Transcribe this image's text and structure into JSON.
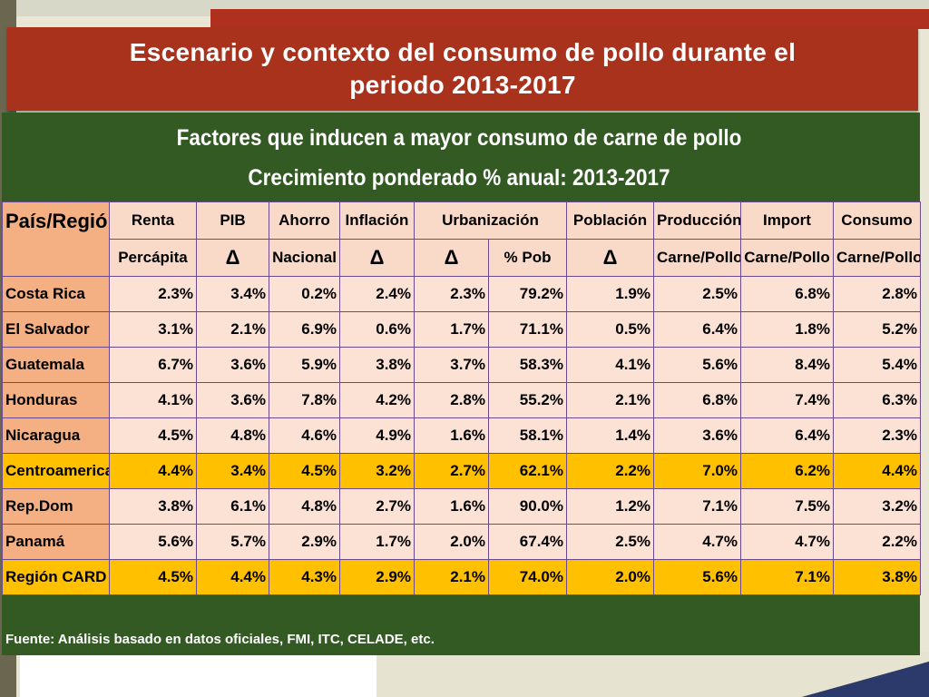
{
  "slide": {
    "title_line1": "Escenario y contexto del consumo de pollo durante el",
    "title_line2": "periodo 2013-2017",
    "subtitle1": "Factores que inducen a mayor consumo de carne de pollo",
    "subtitle2": "Crecimiento ponderado % anual:  2013-2017",
    "footer": "Fuente: Análisis basado en datos oficiales, FMI, ITC, CELADE, etc."
  },
  "table": {
    "h_country": "País/Región",
    "h_renta_1": "Renta",
    "h_renta_2": "Percápita",
    "h_pib_1": "PIB",
    "h_pib_2": "Δ",
    "h_ahorro_1": "Ahorro",
    "h_ahorro_2": "Nacional",
    "h_inflacion_1": "Inflación",
    "h_inflacion_2": "Δ",
    "h_urbanizacion": "Urbanización",
    "h_urb_delta": "Δ",
    "h_urb_pob": "% Pob",
    "h_poblacion_1": "Población",
    "h_poblacion_2": "Δ",
    "h_produccion_1": "Producción",
    "h_produccion_2": "Carne/Pollo",
    "h_import_1": "Import",
    "h_import_2": "Carne/Pollo",
    "h_consumo_1": "Consumo",
    "h_consumo_2": "Carne/Pollo",
    "rows": [
      {
        "name": "Costa Rica",
        "vals": [
          "2.3%",
          "3.4%",
          "0.2%",
          "2.4%",
          "2.3%",
          "79.2%",
          "1.9%",
          "2.5%",
          "6.8%",
          "2.8%"
        ]
      },
      {
        "name": "El Salvador",
        "vals": [
          "3.1%",
          "2.1%",
          "6.9%",
          "0.6%",
          "1.7%",
          "71.1%",
          "0.5%",
          "6.4%",
          "1.8%",
          "5.2%"
        ]
      },
      {
        "name": "Guatemala",
        "vals": [
          "6.7%",
          "3.6%",
          "5.9%",
          "3.8%",
          "3.7%",
          "58.3%",
          "4.1%",
          "5.6%",
          "8.4%",
          "5.4%"
        ]
      },
      {
        "name": "Honduras",
        "vals": [
          "4.1%",
          "3.6%",
          "7.8%",
          "4.2%",
          "2.8%",
          "55.2%",
          "2.1%",
          "6.8%",
          "7.4%",
          "6.3%"
        ]
      },
      {
        "name": "Nicaragua",
        "vals": [
          "4.5%",
          "4.8%",
          "4.6%",
          "4.9%",
          "1.6%",
          "58.1%",
          "1.4%",
          "3.6%",
          "6.4%",
          "2.3%"
        ]
      },
      {
        "name": "Centroamerica",
        "vals": [
          "4.4%",
          "3.4%",
          "4.5%",
          "3.2%",
          "2.7%",
          "62.1%",
          "2.2%",
          "7.0%",
          "6.2%",
          "4.4%"
        ]
      },
      {
        "name": "Rep.Dom",
        "vals": [
          "3.8%",
          "6.1%",
          "4.8%",
          "2.7%",
          "1.6%",
          "90.0%",
          "1.2%",
          "7.1%",
          "7.5%",
          "3.2%"
        ]
      },
      {
        "name": "Panamá",
        "vals": [
          "5.6%",
          "5.7%",
          "2.9%",
          "1.7%",
          "2.0%",
          "67.4%",
          "2.5%",
          "4.7%",
          "4.7%",
          "2.2%"
        ]
      },
      {
        "name": "Región CARD",
        "vals": [
          "4.5%",
          "4.4%",
          "4.3%",
          "2.9%",
          "2.1%",
          "74.0%",
          "2.0%",
          "5.6%",
          "7.1%",
          "3.8%"
        ]
      }
    ]
  },
  "colors": {
    "title_bg": "#a8321c",
    "panel_bg": "#345a24",
    "country_bg": "#f4b083",
    "cell_bg": "#fbe2d5",
    "highlight_bg": "#ffc000"
  }
}
